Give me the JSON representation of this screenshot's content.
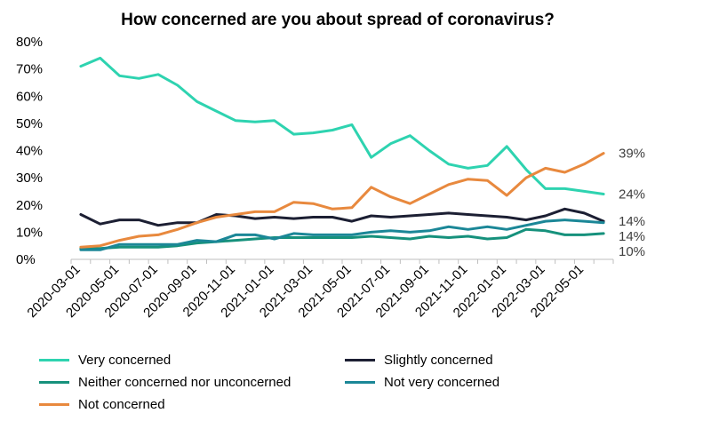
{
  "chart_data": {
    "type": "line",
    "title": "How concerned are you about spread of coronavirus?",
    "xlabel": "",
    "ylabel": "",
    "ylim": [
      0,
      80
    ],
    "yticks": [
      "0%",
      "10%",
      "20%",
      "30%",
      "40%",
      "50%",
      "60%",
      "70%",
      "80%"
    ],
    "x_tick_labels": [
      "2020-03-01",
      "2020-05-01",
      "2020-07-01",
      "2020-09-01",
      "2020-11-01",
      "2021-01-01",
      "2021-03-01",
      "2021-05-01",
      "2021-07-01",
      "2021-09-01",
      "2021-11-01",
      "2022-01-01",
      "2022-03-01",
      "2022-05-01"
    ],
    "x": [
      "2020-03-01",
      "2020-04-01",
      "2020-05-01",
      "2020-06-01",
      "2020-07-01",
      "2020-08-01",
      "2020-09-01",
      "2020-10-01",
      "2020-11-01",
      "2020-12-01",
      "2021-01-01",
      "2021-02-01",
      "2021-03-01",
      "2021-04-01",
      "2021-05-01",
      "2021-06-01",
      "2021-07-01",
      "2021-08-01",
      "2021-09-01",
      "2021-10-01",
      "2021-11-01",
      "2021-12-01",
      "2022-01-01",
      "2022-02-01",
      "2022-03-01",
      "2022-04-01",
      "2022-05-01",
      "2022-06-01"
    ],
    "grid": false,
    "legend_position": "bottom",
    "series": [
      {
        "name": "Very concerned",
        "color": "#2ed3b0",
        "values": [
          71,
          74,
          67.5,
          66.5,
          68,
          64,
          58,
          54.5,
          51,
          50.5,
          51,
          46,
          46.5,
          47.5,
          49.5,
          37.5,
          42.5,
          45.5,
          40,
          35,
          33.5,
          34.5,
          41.5,
          33,
          26,
          26,
          25,
          24
        ],
        "end_label": "24%"
      },
      {
        "name": "Slightly concerned",
        "color": "#1c1f33",
        "values": [
          16.5,
          13,
          14.5,
          14.5,
          12.5,
          13.5,
          13.5,
          16.5,
          16,
          15,
          15.5,
          15,
          15.5,
          15.5,
          14,
          16,
          15.5,
          16,
          16.5,
          17,
          16.5,
          16,
          15.5,
          14.5,
          16,
          18.5,
          17,
          14
        ],
        "end_label": "14%"
      },
      {
        "name": "Neither concerned nor unconcerned",
        "color": "#16917c",
        "values": [
          4,
          4,
          4.5,
          4.5,
          4.5,
          5,
          6,
          6.5,
          7,
          7.5,
          8,
          8,
          8,
          8,
          8,
          8.5,
          8,
          7.5,
          8.5,
          8,
          8.5,
          7.5,
          8,
          11,
          10.5,
          9,
          9,
          9.5
        ],
        "end_label": "10%"
      },
      {
        "name": "Not very concerned",
        "color": "#1b8797",
        "values": [
          3.5,
          3.5,
          5.5,
          5.5,
          5.5,
          5.5,
          7,
          6.5,
          9,
          9,
          7.5,
          9.5,
          9,
          9,
          9,
          10,
          10.5,
          10,
          10.5,
          12,
          11,
          12,
          11,
          12.5,
          14,
          14.5,
          14,
          13.5
        ],
        "end_label": "14%"
      },
      {
        "name": "Not concerned",
        "color": "#e8893e",
        "values": [
          4.5,
          5,
          7,
          8.5,
          9,
          11,
          13.5,
          15.5,
          16.5,
          17.5,
          17.5,
          21,
          20.5,
          18.5,
          19,
          26.5,
          23,
          20.5,
          24,
          27.5,
          29.5,
          29,
          23.5,
          30,
          33.5,
          32,
          35,
          39
        ],
        "end_label": "39%"
      }
    ]
  }
}
